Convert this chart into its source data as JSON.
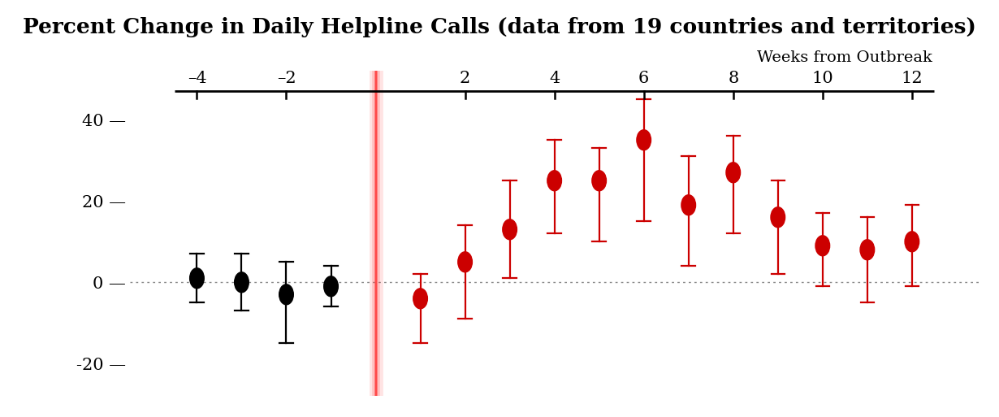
{
  "title": "Percent Change in Daily Helpline Calls (data from 19 countries and territories)",
  "title_fontsize": 19,
  "title_bg": "#d3d3d3",
  "plot_bg": "#ffffff",
  "x_label": "Weeks from Outbreak",
  "x_label_fontsize": 14,
  "weeks": [
    -4,
    -3,
    -2,
    -1,
    1,
    2,
    3,
    4,
    5,
    6,
    7,
    8,
    9,
    10,
    11,
    12
  ],
  "centers": [
    1,
    0,
    -3,
    -1,
    -4,
    5,
    13,
    25,
    25,
    35,
    19,
    27,
    16,
    9,
    8,
    10
  ],
  "lower_err": [
    6,
    7,
    12,
    5,
    11,
    14,
    12,
    13,
    15,
    20,
    15,
    15,
    14,
    10,
    13,
    11
  ],
  "upper_err": [
    6,
    7,
    8,
    5,
    6,
    9,
    12,
    10,
    8,
    10,
    12,
    9,
    9,
    8,
    8,
    9
  ],
  "black_weeks": [
    -4,
    -3,
    -2,
    -1
  ],
  "red_weeks": [
    1,
    2,
    3,
    4,
    5,
    6,
    7,
    8,
    9,
    10,
    11,
    12
  ],
  "outbreak_x": 0,
  "yticks": [
    -20,
    0,
    20,
    40
  ],
  "xticks": [
    -4,
    -2,
    2,
    4,
    6,
    8,
    10,
    12
  ],
  "ylim": [
    -28,
    52
  ],
  "xlim": [
    -5.5,
    13.5
  ],
  "dot_color_black": "#000000",
  "dot_color_red": "#cc0000",
  "outbreak_line_color": "#ff4444",
  "dotted_line_color": "#888888",
  "ruler_x_start": -4.5,
  "ruler_x_end": 12.5
}
